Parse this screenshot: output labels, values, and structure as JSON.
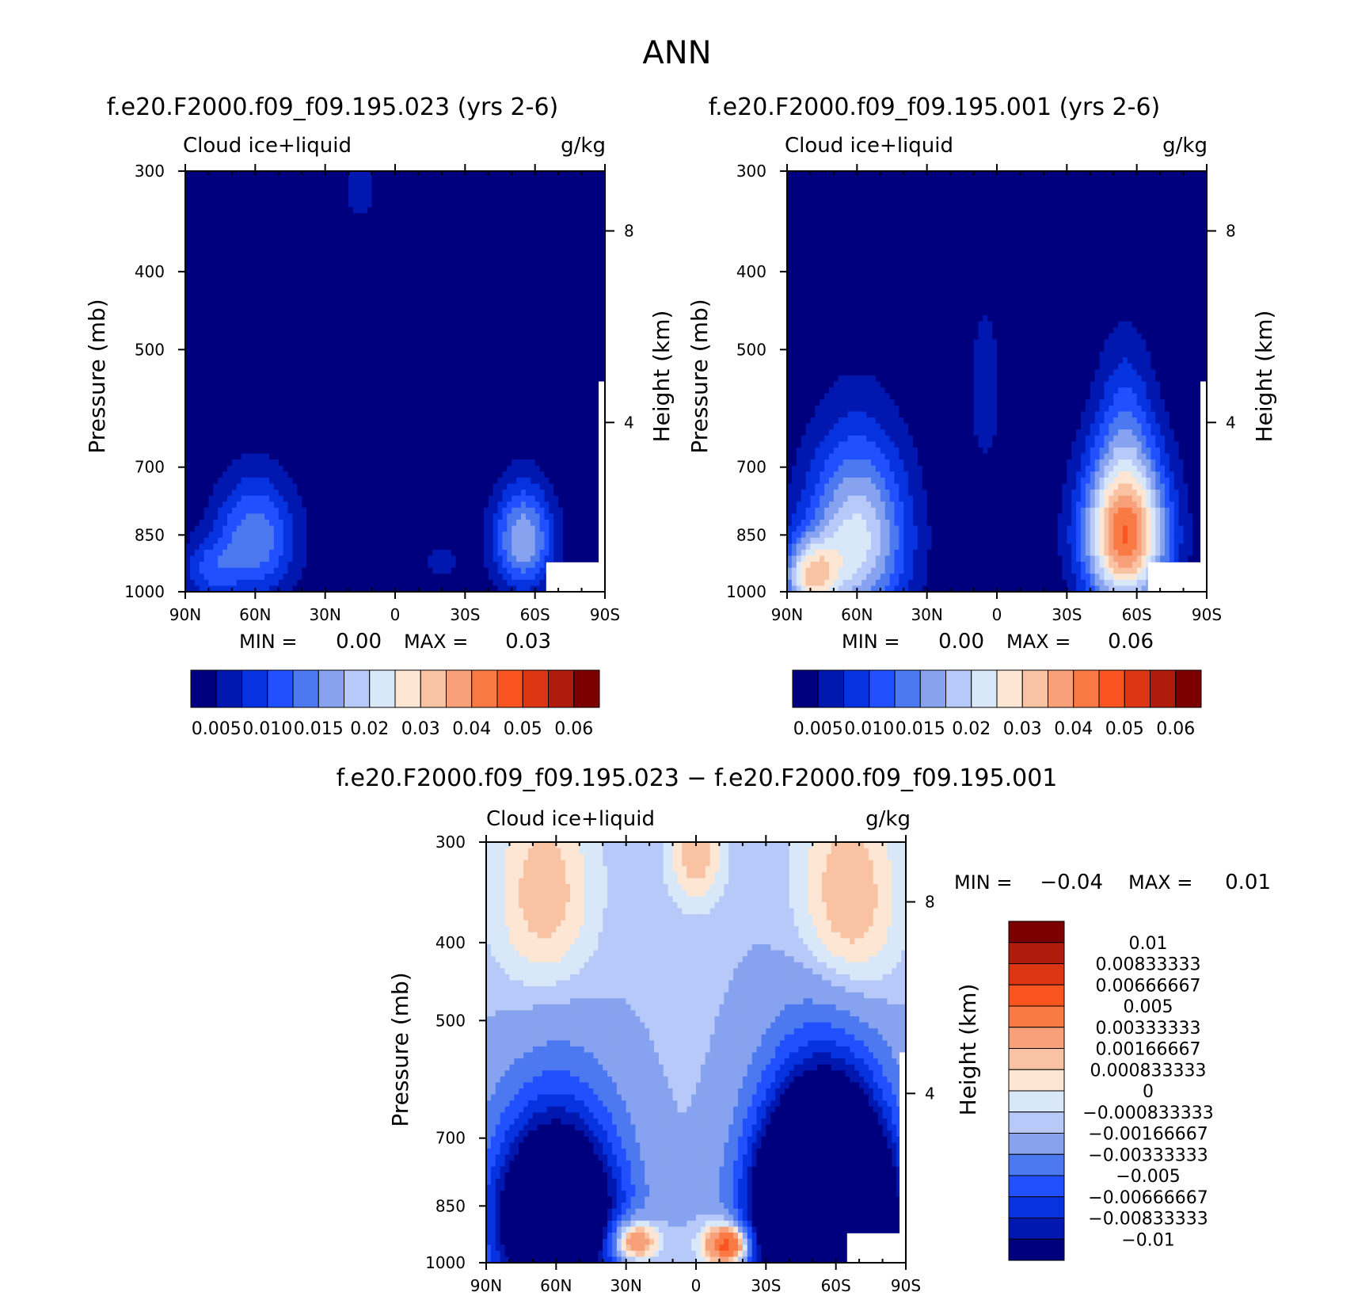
{
  "title": "ANN",
  "variable_label": "Cloud ice+liquid",
  "units_label": "g/kg",
  "ylabel_left": "Pressure (mb)",
  "ylabel_right": "Height (km)",
  "xticks": [
    "90N",
    "60N",
    "30N",
    "0",
    "30S",
    "60S",
    "90S"
  ],
  "pressure_ticks": [
    "300",
    "400",
    "500",
    "700",
    "850",
    "1000"
  ],
  "height_ticks": [
    "8",
    "4"
  ],
  "colors": {
    "absolute": [
      "#00007f",
      "#0018b0",
      "#0632e0",
      "#2050ff",
      "#4d79f0",
      "#87a3f0",
      "#b7c9f8",
      "#d9e8f9",
      "#fde6d3",
      "#f9c3a3",
      "#f8a07a",
      "#fa7a45",
      "#fa5520",
      "#dc3512",
      "#b01c0b",
      "#7d0000"
    ],
    "difference": [
      "#00007f",
      "#0018b0",
      "#0632e0",
      "#2050ff",
      "#4d79f0",
      "#87a3f0",
      "#b7c9f8",
      "#d9e8f9",
      "#fde6d3",
      "#f9c3a3",
      "#f8a07a",
      "#fa7a45",
      "#fa5520",
      "#dc3512",
      "#b01c0b",
      "#7d0000"
    ]
  },
  "panels": [
    {
      "title": "f.e20.F2000.f09_f09.195.023 (yrs 2-6)",
      "min_label": "MIN =",
      "min_value": "0.00",
      "max_label": "MAX =",
      "max_value": "0.03",
      "colorbar_labels": [
        "0.005",
        "0.010",
        "0.015",
        "0.02",
        "0.03",
        "0.04",
        "0.05",
        "0.06"
      ]
    },
    {
      "title": "f.e20.F2000.f09_f09.195.001 (yrs 2-6)",
      "min_label": "MIN =",
      "min_value": "0.00",
      "max_label": "MAX =",
      "max_value": "0.06",
      "colorbar_labels": [
        "0.005",
        "0.010",
        "0.015",
        "0.02",
        "0.03",
        "0.04",
        "0.05",
        "0.06"
      ]
    },
    {
      "title": "f.e20.F2000.f09_f09.195.023 − f.e20.F2000.f09_f09.195.001",
      "min_label": "MIN =",
      "min_value": "−0.04",
      "max_label": "MAX =",
      "max_value": "0.01",
      "colorbar_labels": [
        "0.01",
        "0.00833333",
        "0.00666667",
        "0.005",
        "0.00333333",
        "0.00166667",
        "0.000833333",
        "0",
        "−0.000833333",
        "−0.00166667",
        "−0.00333333",
        "−0.005",
        "−0.00666667",
        "−0.00833333",
        "−0.01"
      ]
    }
  ],
  "chart_data": [
    {
      "type": "heatmap",
      "title": "f.e20.F2000.f09_f09.195.023 (yrs 2-6)",
      "xlabel": "",
      "ylabel": "Pressure (mb)",
      "x_range": [
        90,
        -90
      ],
      "y_range": [
        300,
        1000
      ],
      "levels": [
        0.005,
        0.01,
        0.015,
        0.02,
        0.025,
        0.03,
        0.035,
        0.04,
        0.045,
        0.05,
        0.055,
        0.06
      ],
      "background": 0.0,
      "features": [
        {
          "lat": 60,
          "pressure": 860,
          "peak": 0.024,
          "lat_halfwidth": 18,
          "p_halfwidth": 150
        },
        {
          "lat": 80,
          "pressure": 940,
          "peak": 0.013,
          "lat_halfwidth": 12,
          "p_halfwidth": 80
        },
        {
          "lat": -55,
          "pressure": 860,
          "peak": 0.03,
          "lat_halfwidth": 13,
          "p_halfwidth": 130
        },
        {
          "lat": -20,
          "pressure": 920,
          "peak": 0.007,
          "lat_halfwidth": 10,
          "p_halfwidth": 60
        },
        {
          "lat": 15,
          "pressure": 310,
          "peak": 0.007,
          "lat_halfwidth": 10,
          "p_halfwidth": 50
        }
      ]
    },
    {
      "type": "heatmap",
      "title": "f.e20.F2000.f09_f09.195.001 (yrs 2-6)",
      "xlabel": "",
      "ylabel": "Pressure (mb)",
      "x_range": [
        90,
        -90
      ],
      "y_range": [
        300,
        1000
      ],
      "levels": [
        0.005,
        0.01,
        0.015,
        0.02,
        0.025,
        0.03,
        0.035,
        0.04,
        0.045,
        0.05,
        0.055,
        0.06
      ],
      "background": 0.0,
      "features": [
        {
          "lat": 60,
          "pressure": 860,
          "peak": 0.037,
          "lat_halfwidth": 22,
          "p_halfwidth": 230
        },
        {
          "lat": 80,
          "pressure": 960,
          "peak": 0.035,
          "lat_halfwidth": 12,
          "p_halfwidth": 100
        },
        {
          "lat": -55,
          "pressure": 850,
          "peak": 0.06,
          "lat_halfwidth": 18,
          "p_halfwidth": 190
        },
        {
          "lat": -55,
          "pressure": 600,
          "peak": 0.01,
          "lat_halfwidth": 12,
          "p_halfwidth": 150
        },
        {
          "lat": 5,
          "pressure": 560,
          "peak": 0.008,
          "lat_halfwidth": 8,
          "p_halfwidth": 160
        }
      ]
    },
    {
      "type": "heatmap",
      "title": "f.e20.F2000.f09_f09.195.023 − f.e20.F2000.f09_f09.195.001",
      "xlabel": "",
      "ylabel": "Pressure (mb)",
      "x_range": [
        90,
        -90
      ],
      "y_range": [
        300,
        1000
      ],
      "levels": [
        -0.01,
        -0.00833333,
        -0.00666667,
        -0.005,
        -0.00333333,
        -0.00166667,
        -0.000833333,
        0,
        0.000833333,
        0.00166667,
        0.00333333,
        0.005,
        0.00666667,
        0.00833333,
        0.01
      ],
      "background": -0.0015,
      "features": [
        {
          "lat": 60,
          "pressure": 880,
          "peak": -0.02,
          "lat_halfwidth": 26,
          "p_halfwidth": 230
        },
        {
          "lat": -55,
          "pressure": 880,
          "peak": -0.04,
          "lat_halfwidth": 26,
          "p_halfwidth": 250
        },
        {
          "lat": 28,
          "pressure": 940,
          "peak": 0.008,
          "lat_halfwidth": 11,
          "p_halfwidth": 60
        },
        {
          "lat": -15,
          "pressure": 950,
          "peak": 0.01,
          "lat_halfwidth": 11,
          "p_halfwidth": 60
        },
        {
          "lat": -65,
          "pressure": 360,
          "peak": 0.0035,
          "lat_halfwidth": 22,
          "p_halfwidth": 120
        },
        {
          "lat": 65,
          "pressure": 350,
          "peak": 0.003,
          "lat_halfwidth": 22,
          "p_halfwidth": 110
        },
        {
          "lat": 0,
          "pressure": 310,
          "peak": 0.003,
          "lat_halfwidth": 12,
          "p_halfwidth": 50
        }
      ]
    }
  ]
}
